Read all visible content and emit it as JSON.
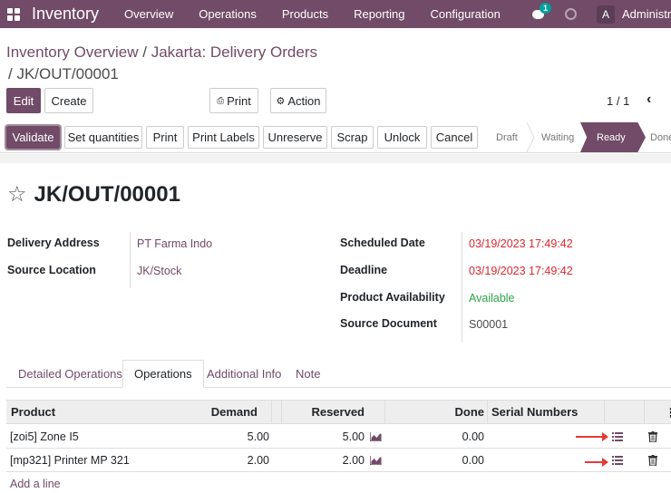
{
  "nav": {
    "app_title": "Inventory",
    "menu": [
      "Overview",
      "Operations",
      "Products",
      "Reporting",
      "Configuration"
    ],
    "chat_badge": "1",
    "avatar_letter": "A",
    "user_name": "Administrator"
  },
  "breadcrumb": {
    "parent": "Inventory Overview",
    "separator": "/",
    "middle": "Jakarta: Delivery Orders",
    "current": "/ JK/OUT/00001"
  },
  "control": {
    "edit": "Edit",
    "create": "Create",
    "print": "Print",
    "action": "Action",
    "pager": "1 / 1"
  },
  "statusbar": {
    "buttons": [
      "Validate",
      "Set quantities",
      "Print",
      "Print Labels",
      "Unreserve",
      "Scrap",
      "Unlock",
      "Cancel"
    ],
    "stages": [
      "Draft",
      "Waiting",
      "Ready",
      "Done"
    ],
    "active_stage": "Ready",
    "accent": "#714b67"
  },
  "record": {
    "name": "JK/OUT/00001",
    "left_fields": [
      {
        "label": "Delivery Address",
        "value": "PT Farma Indo"
      },
      {
        "label": "Source Location",
        "value": "JK/Stock"
      }
    ],
    "right_fields": [
      {
        "label": "Scheduled Date",
        "value": "03/19/2023 17:49:42"
      },
      {
        "label": "Deadline",
        "value": "03/19/2023 17:49:42"
      },
      {
        "label": "Product Availability",
        "value": "Available"
      },
      {
        "label": "Source Document",
        "value": "S00001"
      }
    ]
  },
  "tabs": [
    "Detailed Operations",
    "Operations",
    "Additional Info",
    "Note"
  ],
  "active_tab": "Operations",
  "table": {
    "headers": [
      "Product",
      "Demand",
      "Reserved",
      "Done",
      "Serial Numbers"
    ],
    "rows": [
      {
        "product": "[zoi5] Zone I5",
        "demand": "5.00",
        "reserved": "5.00",
        "done": "0.00"
      },
      {
        "product": "[mp321] Printer MP 321",
        "demand": "2.00",
        "reserved": "2.00",
        "done": "0.00"
      }
    ],
    "add_line": "Add a line"
  }
}
